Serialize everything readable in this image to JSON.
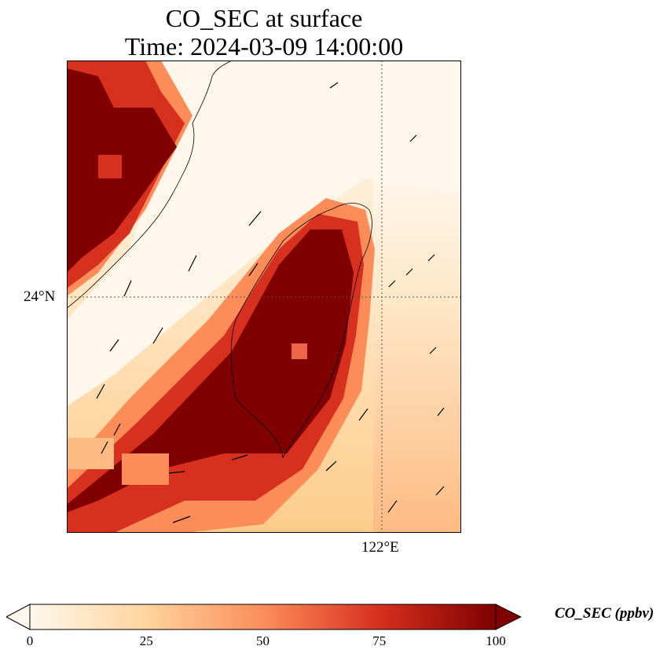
{
  "title": {
    "line1": "CO_SEC at surface",
    "line2": "Time: 2024-03-09 14:00:00"
  },
  "map": {
    "lat_label": "24°N",
    "lon_label": "122°E",
    "gridlines": "dotted",
    "colormap": "OrRd",
    "colors": {
      "low": "#fff7ec",
      "mid": "#fc8d59",
      "high": "#7f0000",
      "coastline": "#000000"
    }
  },
  "colorbar": {
    "label": "CO_SEC (ppbv)",
    "ticks": [
      "0",
      "25",
      "50",
      "75",
      "100"
    ],
    "min": 0,
    "max": 100,
    "extend": "both"
  }
}
